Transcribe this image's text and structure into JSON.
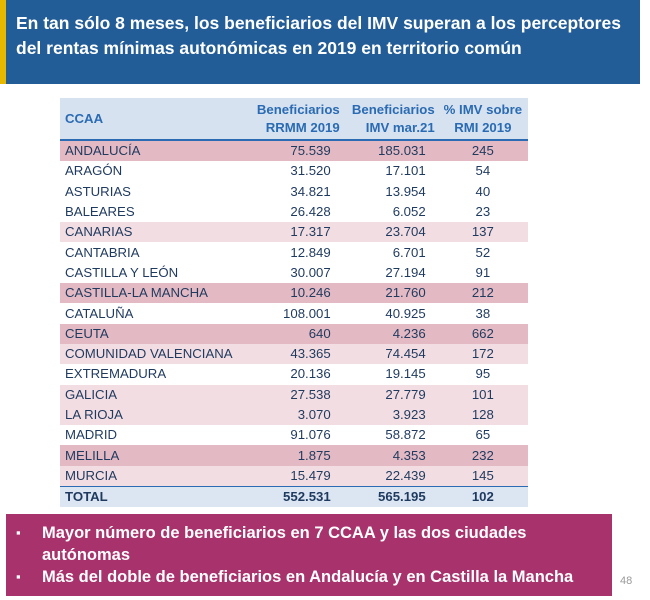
{
  "header": {
    "title": "En tan sólo 8 meses, los beneficiarios del IMV superan a los perceptores del rentas mínimas autonómicas en 2019 en territorio común"
  },
  "table": {
    "columns": {
      "ccaa": "CCAA",
      "rrmm_line1": "Beneficiarios",
      "rrmm_line2": "RRMM 2019",
      "imv_line1": "Beneficiarios",
      "imv_line2": "IMV mar.21",
      "pct_line1": "% IMV sobre",
      "pct_line2": "RMI 2019"
    },
    "rows": [
      {
        "name": "ANDALUCÍA",
        "rrmm": "75.539",
        "imv": "185.031",
        "pct": "245"
      },
      {
        "name": "ARAGÓN",
        "rrmm": "31.520",
        "imv": "17.101",
        "pct": "54"
      },
      {
        "name": "ASTURIAS",
        "rrmm": "34.821",
        "imv": "13.954",
        "pct": "40"
      },
      {
        "name": "BALEARES",
        "rrmm": "26.428",
        "imv": "6.052",
        "pct": "23"
      },
      {
        "name": "CANARIAS",
        "rrmm": "17.317",
        "imv": "23.704",
        "pct": "137"
      },
      {
        "name": "CANTABRIA",
        "rrmm": "12.849",
        "imv": "6.701",
        "pct": "52"
      },
      {
        "name": "CASTILLA Y LEÓN",
        "rrmm": "30.007",
        "imv": "27.194",
        "pct": "91"
      },
      {
        "name": "CASTILLA-LA MANCHA",
        "rrmm": "10.246",
        "imv": "21.760",
        "pct": "212"
      },
      {
        "name": "CATALUÑA",
        "rrmm": "108.001",
        "imv": "40.925",
        "pct": "38"
      },
      {
        "name": "CEUTA",
        "rrmm": "640",
        "imv": "4.236",
        "pct": "662"
      },
      {
        "name": "COMUNIDAD VALENCIANA",
        "rrmm": "43.365",
        "imv": "74.454",
        "pct": "172"
      },
      {
        "name": "EXTREMADURA",
        "rrmm": "20.136",
        "imv": "19.145",
        "pct": "95"
      },
      {
        "name": "GALICIA",
        "rrmm": "27.538",
        "imv": "27.779",
        "pct": "101"
      },
      {
        "name": "LA RIOJA",
        "rrmm": "3.070",
        "imv": "3.923",
        "pct": "128"
      },
      {
        "name": "MADRID",
        "rrmm": "91.076",
        "imv": "58.872",
        "pct": "65"
      },
      {
        "name": "MELILLA",
        "rrmm": "1.875",
        "imv": "4.353",
        "pct": "232"
      },
      {
        "name": "MURCIA",
        "rrmm": "15.479",
        "imv": "22.439",
        "pct": "145"
      }
    ],
    "total": {
      "name": "TOTAL",
      "rrmm": "552.531",
      "imv": "565.195",
      "pct": "102"
    }
  },
  "footer": {
    "bullets": [
      "Mayor número de beneficiarios en 7 CCAA y las dos ciudades autónomas",
      "Más del doble de beneficiarios en Andalucía y en Castilla la Mancha"
    ]
  },
  "page_number": "48",
  "colors": {
    "header_bg": "#235d97",
    "header_accent": "#e6b800",
    "table_header_text": "#2a6bb3",
    "row_highlight_strong": "#e3b9c3",
    "row_highlight_light": "#f2dde2",
    "footer_bg": "#a8336c"
  }
}
